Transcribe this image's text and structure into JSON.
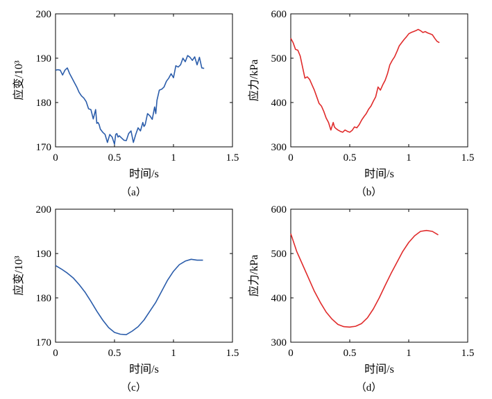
{
  "chart_data": [
    {
      "panel": "a",
      "type": "line",
      "caption": "（a）",
      "xlabel": "时间/s",
      "ylabel": "应变/10³",
      "xlim": [
        0,
        1.5
      ],
      "ylim": [
        170,
        200
      ],
      "xticks": [
        "0",
        "0.5",
        "1",
        "1.5"
      ],
      "yticks": [
        "170",
        "180",
        "190",
        "200"
      ],
      "color": "#2a5caa",
      "grid": false,
      "series": [
        {
          "x": [
            0,
            0.02,
            0.04,
            0.06,
            0.08,
            0.1,
            0.12,
            0.14,
            0.16,
            0.18,
            0.2,
            0.22,
            0.24,
            0.26,
            0.28,
            0.3,
            0.32,
            0.34,
            0.35,
            0.36,
            0.37,
            0.38,
            0.4,
            0.42,
            0.44,
            0.46,
            0.48,
            0.5,
            0.51,
            0.52,
            0.53,
            0.54,
            0.56,
            0.58,
            0.6,
            0.62,
            0.64,
            0.66,
            0.68,
            0.7,
            0.72,
            0.74,
            0.75,
            0.76,
            0.78,
            0.8,
            0.82,
            0.84,
            0.85,
            0.86,
            0.88,
            0.9,
            0.92,
            0.94,
            0.96,
            0.98,
            1.0,
            1.02,
            1.04,
            1.06,
            1.08,
            1.1,
            1.12,
            1.14,
            1.16,
            1.18,
            1.2,
            1.22,
            1.24,
            1.26
          ],
          "y": [
            187.3,
            187.4,
            187.3,
            186.2,
            187.3,
            187.8,
            186.5,
            185.5,
            184.5,
            183.5,
            182.3,
            181.5,
            181.0,
            180.2,
            178.6,
            178.4,
            176.3,
            178.4,
            175.3,
            175.5,
            175.0,
            174.0,
            173.3,
            172.8,
            171.0,
            172.8,
            172.2,
            170.6,
            172.8,
            173.0,
            172.2,
            172.5,
            172.0,
            171.5,
            171.4,
            173.0,
            173.6,
            171.0,
            172.8,
            174.3,
            173.6,
            175.5,
            174.6,
            175.0,
            177.5,
            177.0,
            176.2,
            179.0,
            177.5,
            180.5,
            182.8,
            183.0,
            183.5,
            184.8,
            185.5,
            186.5,
            185.6,
            188.3,
            188.0,
            188.5,
            190.0,
            189.2,
            190.6,
            190.2,
            189.5,
            190.3,
            188.5,
            190.2,
            187.8,
            187.7
          ]
        }
      ]
    },
    {
      "panel": "b",
      "type": "line",
      "caption": "（b）",
      "xlabel": "时间/s",
      "ylabel": "应力/kPa",
      "xlim": [
        0,
        1.5
      ],
      "ylim": [
        300,
        600
      ],
      "xticks": [
        "0",
        "0.5",
        "1",
        "1.5"
      ],
      "yticks": [
        "300",
        "400",
        "500",
        "600"
      ],
      "color": "#e02a2a",
      "grid": false,
      "series": [
        {
          "x": [
            0,
            0.02,
            0.04,
            0.06,
            0.08,
            0.1,
            0.12,
            0.14,
            0.16,
            0.18,
            0.2,
            0.22,
            0.24,
            0.26,
            0.28,
            0.3,
            0.32,
            0.34,
            0.36,
            0.37,
            0.38,
            0.4,
            0.42,
            0.44,
            0.46,
            0.48,
            0.5,
            0.52,
            0.54,
            0.56,
            0.58,
            0.6,
            0.62,
            0.64,
            0.66,
            0.68,
            0.7,
            0.72,
            0.74,
            0.76,
            0.78,
            0.8,
            0.82,
            0.84,
            0.86,
            0.88,
            0.9,
            0.92,
            0.94,
            0.96,
            0.98,
            1.0,
            1.02,
            1.04,
            1.06,
            1.08,
            1.1,
            1.12,
            1.14,
            1.16,
            1.18,
            1.2,
            1.22,
            1.24,
            1.26
          ],
          "y": [
            545,
            535,
            520,
            518,
            505,
            480,
            455,
            458,
            452,
            440,
            428,
            413,
            398,
            392,
            380,
            365,
            355,
            338,
            355,
            345,
            342,
            338,
            335,
            333,
            338,
            335,
            333,
            337,
            345,
            343,
            350,
            360,
            368,
            375,
            385,
            392,
            403,
            413,
            435,
            428,
            440,
            450,
            465,
            485,
            495,
            503,
            515,
            528,
            535,
            542,
            548,
            555,
            558,
            560,
            562,
            565,
            562,
            558,
            560,
            557,
            555,
            553,
            545,
            538,
            535
          ]
        }
      ]
    },
    {
      "panel": "c",
      "type": "line",
      "caption": "（c）",
      "xlabel": "时间/s",
      "ylabel": "应变/10³",
      "xlim": [
        0,
        1.5
      ],
      "ylim": [
        170,
        200
      ],
      "xticks": [
        "0",
        "0.5",
        "1",
        "1.5"
      ],
      "yticks": [
        "170",
        "180",
        "190",
        "200"
      ],
      "color": "#2a5caa",
      "grid": false,
      "series": [
        {
          "x": [
            0,
            0.05,
            0.1,
            0.15,
            0.2,
            0.25,
            0.3,
            0.35,
            0.4,
            0.45,
            0.5,
            0.55,
            0.6,
            0.65,
            0.7,
            0.75,
            0.8,
            0.85,
            0.9,
            0.95,
            1.0,
            1.05,
            1.1,
            1.15,
            1.2,
            1.25
          ],
          "y": [
            187.3,
            186.5,
            185.6,
            184.5,
            183.0,
            181.3,
            179.2,
            177.0,
            175.0,
            173.3,
            172.2,
            171.8,
            171.7,
            172.5,
            173.5,
            175.0,
            177.0,
            179.0,
            181.5,
            184.0,
            186.0,
            187.5,
            188.3,
            188.7,
            188.5,
            188.5
          ]
        }
      ]
    },
    {
      "panel": "d",
      "type": "line",
      "caption": "（d）",
      "xlabel": "时间/s",
      "ylabel": "应力/kPa",
      "xlim": [
        0,
        1.5
      ],
      "ylim": [
        300,
        600
      ],
      "xticks": [
        "0",
        "0.5",
        "1",
        "1.5"
      ],
      "yticks": [
        "300",
        "400",
        "500",
        "600"
      ],
      "color": "#e02a2a",
      "grid": false,
      "series": [
        {
          "x": [
            0,
            0.05,
            0.1,
            0.15,
            0.2,
            0.25,
            0.3,
            0.35,
            0.4,
            0.45,
            0.5,
            0.55,
            0.6,
            0.65,
            0.7,
            0.75,
            0.8,
            0.85,
            0.9,
            0.95,
            1.0,
            1.05,
            1.1,
            1.15,
            1.2,
            1.25
          ],
          "y": [
            545,
            505,
            475,
            445,
            415,
            390,
            368,
            352,
            340,
            335,
            334,
            336,
            342,
            355,
            375,
            400,
            428,
            455,
            480,
            505,
            525,
            540,
            550,
            552,
            550,
            542
          ]
        }
      ]
    }
  ]
}
